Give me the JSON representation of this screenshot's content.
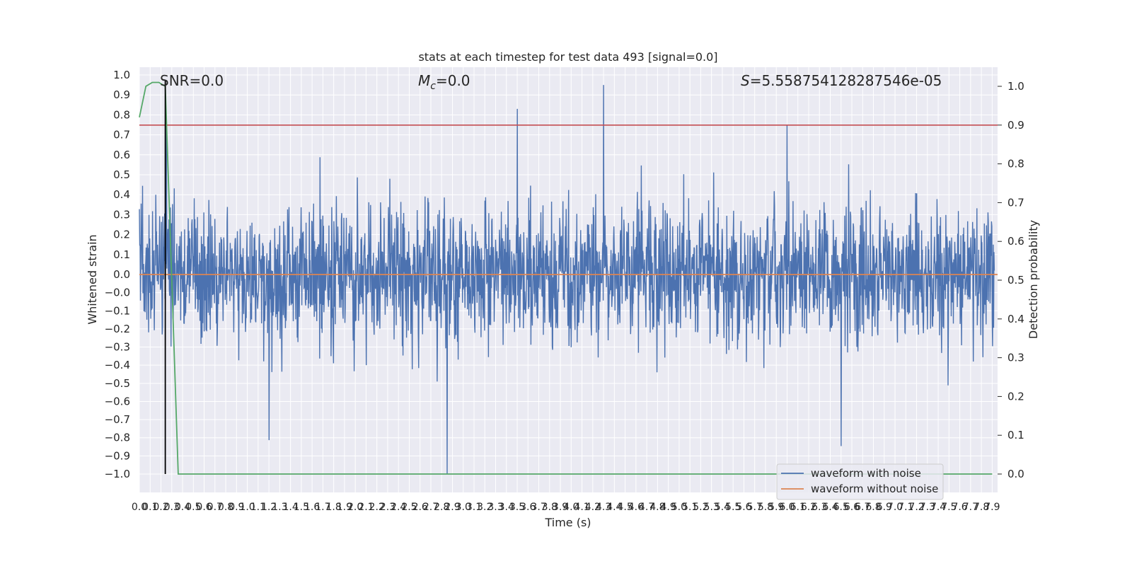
{
  "chart_data": {
    "type": "line",
    "title": "stats at each timestep for test data 493 [signal=0.0]",
    "xlabel": "Time (s)",
    "ylabel_left": "Whitened strain",
    "ylabel_right": "Detection probability",
    "xlim": [
      0.0,
      7.95
    ],
    "ylim_left": [
      -1.1,
      1.05
    ],
    "ylim_right": [
      -0.05,
      1.03
    ],
    "grid": true,
    "legend_placement": "lower right",
    "annotations": {
      "snr": "SNR=0.0",
      "mc_symbol": "M",
      "mc_sub": "c",
      "mc_value": "=0.0",
      "s_symbol": "S",
      "s_value": "=5.558754128287546e-05"
    },
    "x_ticks": [
      "0.0",
      "0.1",
      "0.2",
      "0.3",
      "0.4",
      "0.5",
      "0.6",
      "0.7",
      "0.8",
      "0.9",
      "1.0",
      "1.1",
      "1.2",
      "1.3",
      "1.4",
      "1.5",
      "1.6",
      "1.7",
      "1.8",
      "1.9",
      "2.0",
      "2.1",
      "2.2",
      "2.3",
      "2.4",
      "2.5",
      "2.6",
      "2.7",
      "2.8",
      "2.9",
      "3.0",
      "3.1",
      "3.2",
      "3.3",
      "3.4",
      "3.5",
      "3.6",
      "3.7",
      "3.8",
      "3.9",
      "4.0",
      "4.1",
      "4.2",
      "4.3",
      "4.4",
      "4.5",
      "4.6",
      "4.7",
      "4.8",
      "4.9",
      "5.0",
      "5.1",
      "5.2",
      "5.3",
      "5.4",
      "5.5",
      "5.6",
      "5.7",
      "5.8",
      "5.9",
      "6.0",
      "6.1",
      "6.2",
      "6.3",
      "6.4",
      "6.5",
      "6.6",
      "6.7",
      "6.8",
      "6.9",
      "7.0",
      "7.1",
      "7.2",
      "7.3",
      "7.4",
      "7.5",
      "7.6",
      "7.7",
      "7.8",
      "7.9"
    ],
    "y_ticks_left": [
      "1.0",
      "0.9",
      "0.8",
      "0.7",
      "0.6",
      "0.5",
      "0.4",
      "0.3",
      "0.2",
      "0.1",
      "0.0",
      "−0.0",
      "−0.1",
      "−0.2",
      "−0.3",
      "−0.4",
      "−0.5",
      "−0.6",
      "−0.7",
      "−0.8",
      "−0.9",
      "−1.0"
    ],
    "y_ticks_right": [
      "1.0",
      "0.9",
      "0.8",
      "0.7",
      "0.6",
      "0.5",
      "0.4",
      "0.3",
      "0.2",
      "0.1",
      "0.0"
    ],
    "series": [
      {
        "name": "waveform with noise",
        "color": "#4c72b0",
        "description_values": {
          "typical_band": [
            -0.35,
            0.35
          ],
          "max": 0.95,
          "min": -1.0,
          "peaks": [
            [
              0.25,
              0.75
            ],
            [
              3.5,
              0.83
            ],
            [
              4.3,
              0.95
            ],
            [
              6.0,
              0.75
            ],
            [
              2.85,
              -1.0
            ],
            [
              6.5,
              -0.86
            ],
            [
              1.2,
              -0.83
            ]
          ]
        }
      },
      {
        "name": "waveform without noise",
        "color": "#dd8452",
        "values_constant": 0.0
      },
      {
        "color": "#55a868",
        "axis": "right",
        "x": [
          0.0,
          0.06,
          0.12,
          0.18,
          0.24,
          0.3,
          0.36,
          0.4,
          7.9
        ],
        "y": [
          0.92,
          1.0,
          1.01,
          1.01,
          1.0,
          0.5,
          0.0,
          0.0,
          0.0
        ]
      }
    ],
    "threshold_line": {
      "color": "#c44e52",
      "axis": "right",
      "y": 0.9
    },
    "marker_line": {
      "color": "#000000",
      "x": 0.24,
      "y_range": [
        -1.0,
        0.97
      ]
    }
  },
  "legend": {
    "items": [
      {
        "label": "waveform with noise",
        "color": "#4c72b0"
      },
      {
        "label": "waveform without noise",
        "color": "#dd8452"
      }
    ]
  }
}
